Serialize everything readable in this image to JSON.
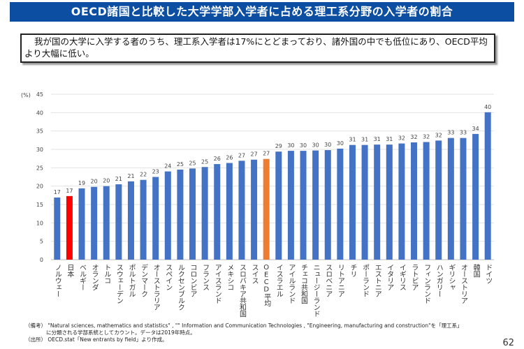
{
  "title": "OECD諸国と比較した大学学部入学者に占める理工系分野の入学者の割合",
  "summary": "我が国の大学に入学する者のうち、理工系入学者は17%にとどまっており、諸外国の中でも低位にあり、OECD平均より大幅に低い。",
  "chart_data": {
    "type": "bar",
    "ylabel": "(%)",
    "ylim": [
      0,
      45
    ],
    "yticks": [
      0,
      5,
      10,
      15,
      20,
      25,
      30,
      35,
      40,
      45
    ],
    "grid": true,
    "categories": [
      "ノルウェー",
      "日本",
      "ベルギー",
      "オランダ",
      "トルコ",
      "スウェーデン",
      "ポルトガル",
      "デンマーク",
      "オーストラリア",
      "スペイン",
      "ルクセンブルク",
      "コロンビア",
      "フランス",
      "アイスランド",
      "メキシコ",
      "スロバキア共和国",
      "スイス",
      "OECD平均",
      "イスラエル",
      "アイルランド",
      "チェコ共和国",
      "ニュージーランド",
      "スロベニア",
      "リトアニア",
      "チリ",
      "ポーランド",
      "エストニア",
      "イタリア",
      "イギリス",
      "ラトビア",
      "フィンランド",
      "ハンガリー",
      "ギリシャ",
      "オーストリア",
      "韓国",
      "ドイツ"
    ],
    "values": [
      16.9,
      17.3,
      19.4,
      19.8,
      20.0,
      20.5,
      21.3,
      21.7,
      22.5,
      24.0,
      24.5,
      24.8,
      25.2,
      26.0,
      26.3,
      26.9,
      27.2,
      27.4,
      29.4,
      29.6,
      29.6,
      29.7,
      29.8,
      30.2,
      31.2,
      31.2,
      31.3,
      31.3,
      31.6,
      31.9,
      32.0,
      32.4,
      33.1,
      33.1,
      34.2,
      40.1
    ],
    "data_labels": [
      "17",
      "17",
      "19",
      "20",
      "20",
      "21",
      "21",
      "22",
      "23",
      "24",
      "25",
      "25",
      "25",
      "26",
      "26",
      "27",
      "27",
      "27",
      "29",
      "30",
      "30",
      "30",
      "30",
      "30",
      "31",
      "31",
      "31",
      "31",
      "32",
      "32",
      "32",
      "32",
      "33",
      "33",
      "34",
      "40"
    ],
    "colors": {
      "default": "#4472c4",
      "japan": "#ff0000",
      "oecd": "#ed7d31"
    },
    "highlight": {
      "japan": "日本",
      "oecd": "OECD平均"
    }
  },
  "notes": {
    "line1": "（備考） \"Natural sciences, mathematics and statistics\" , \"\" Information and Communication Technologies , \"Engineering, manufacturing and construction\"を「理工系」",
    "line2": "　　　　に分類される学部系統としてカウント。データは2019年時点。",
    "line3": "（出所） OECD.stat「New entrants by field」より作成。"
  },
  "page_number": "62"
}
